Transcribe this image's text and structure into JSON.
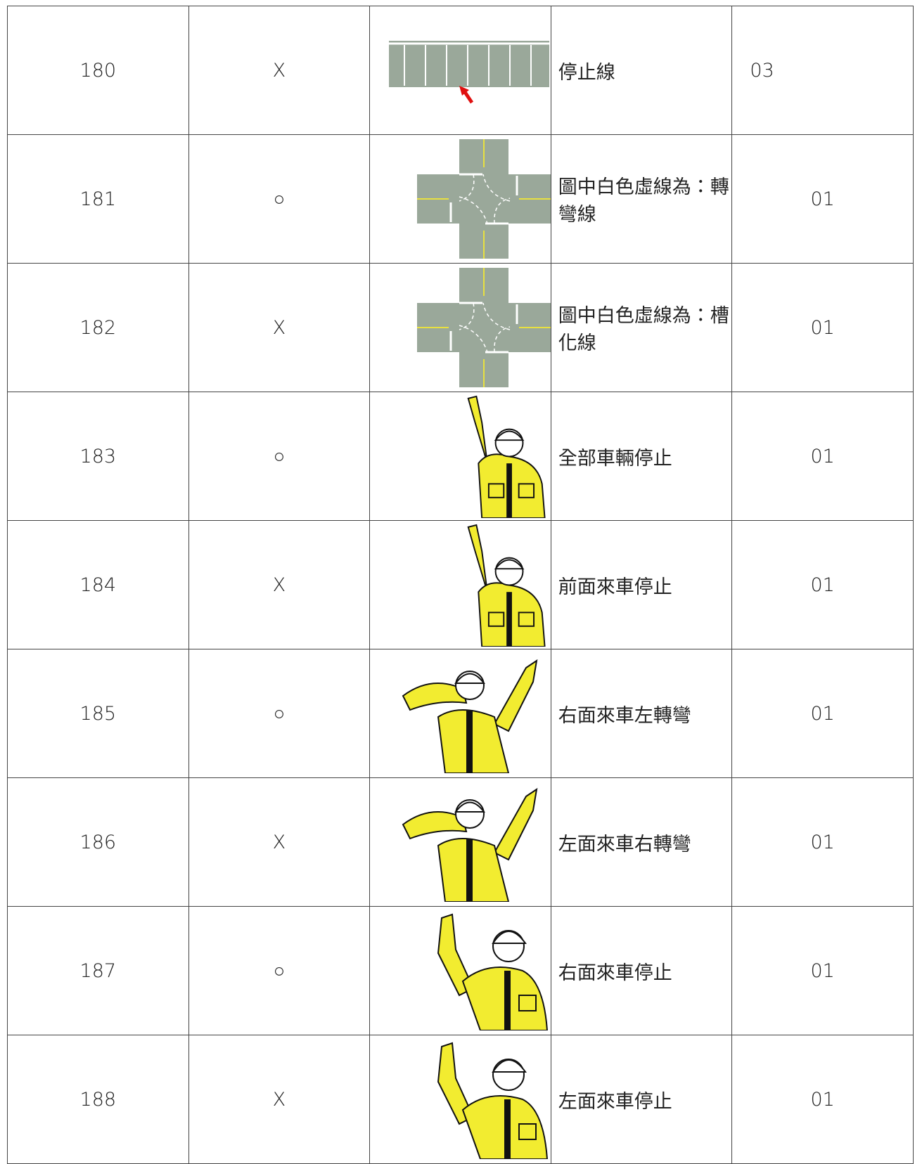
{
  "table": {
    "rows": [
      [
        "180",
        "X",
        "停止線",
        "03"
      ],
      [
        "181",
        "○",
        "圖中白色虛線為：轉彎線",
        "01"
      ],
      [
        "182",
        "X",
        "圖中白色虛線為：槽化線",
        "01"
      ],
      [
        "183",
        "○",
        "全部車輛停止",
        "01"
      ],
      [
        "184",
        "X",
        "前面來車停止",
        "01"
      ],
      [
        "185",
        "○",
        "右面來車左轉彎",
        "01"
      ],
      [
        "186",
        "X",
        "左面來車右轉彎",
        "01"
      ],
      [
        "187",
        "○",
        "右面來車停止",
        "01"
      ],
      [
        "188",
        "X",
        "左面來車停止",
        "01"
      ]
    ]
  }
}
